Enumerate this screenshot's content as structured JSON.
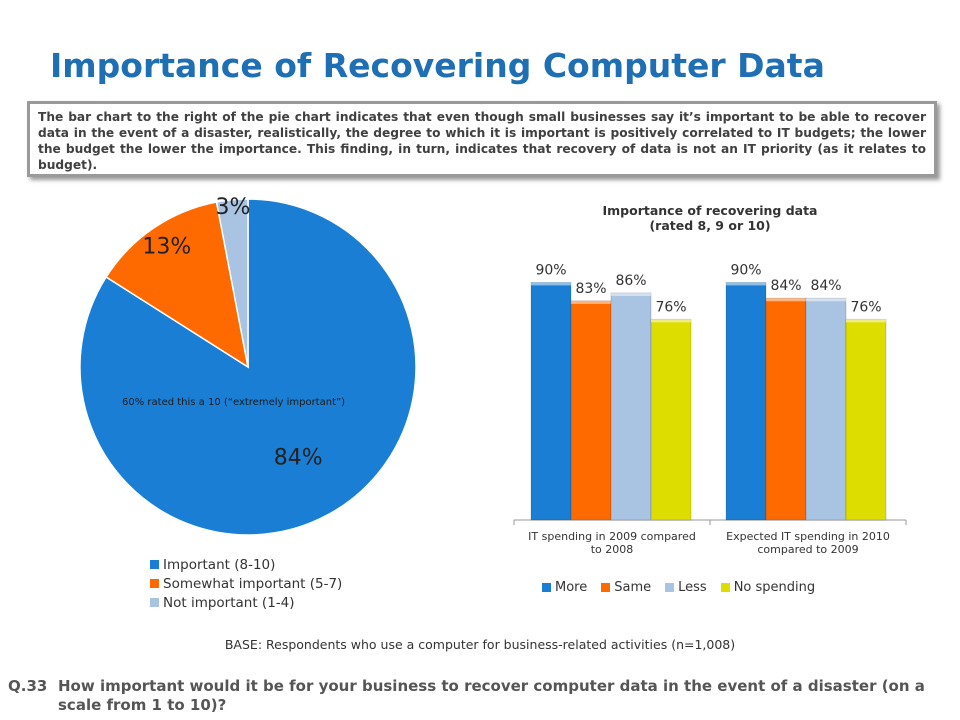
{
  "title": "Importance of Recovering Computer Data",
  "callout": "The bar chart to the right of the pie chart indicates that even though small businesses say it’s important to be able to recover data in the event of a disaster, realistically, the degree to which it is important is positively correlated to IT budgets; the lower the budget the lower the importance. This finding, in turn, indicates that recovery of data is not an IT priority (as it relates to budget).",
  "base_note": "BASE: Respondents who use a computer for business-related activities (n=1,008)",
  "question": {
    "number": "Q.33",
    "text": "How important would it be for your business to recover computer data in the event of a disaster (on a scale from 1 to 10)?"
  },
  "chart_data": [
    {
      "type": "pie",
      "labels": [
        "Important (8-10)",
        "Somewhat important (5-7)",
        "Not important (1-4)"
      ],
      "values": [
        84,
        13,
        3
      ],
      "value_labels": [
        "84%",
        "13%",
        "3%"
      ],
      "colors": [
        "#1a7fd4",
        "#ff6a00",
        "#a9c3e2"
      ],
      "annotation": "60% rated this a 10 (“extremely important”)",
      "legend_position": "bottom"
    },
    {
      "type": "bar",
      "title": "Importance of recovering data",
      "subtitle": "(rated 8, 9 or 10)",
      "categories": [
        "IT spending in 2009 compared to 2008",
        "Expected IT spending in 2010 compared to 2009"
      ],
      "series": [
        {
          "name": "More",
          "values": [
            90,
            90
          ],
          "labels": [
            "90%",
            "90%"
          ],
          "color": "#1a7fd4"
        },
        {
          "name": "Same",
          "values": [
            83,
            84
          ],
          "labels": [
            "83%",
            "84%"
          ],
          "color": "#ff6a00"
        },
        {
          "name": "Less",
          "values": [
            86,
            84
          ],
          "labels": [
            "86%",
            "84%"
          ],
          "color": "#a9c3e2"
        },
        {
          "name": "No spending",
          "values": [
            76,
            76
          ],
          "labels": [
            "76%",
            "76%"
          ],
          "color": "#dddd00"
        }
      ],
      "legend_position": "bottom",
      "grid": false
    }
  ]
}
